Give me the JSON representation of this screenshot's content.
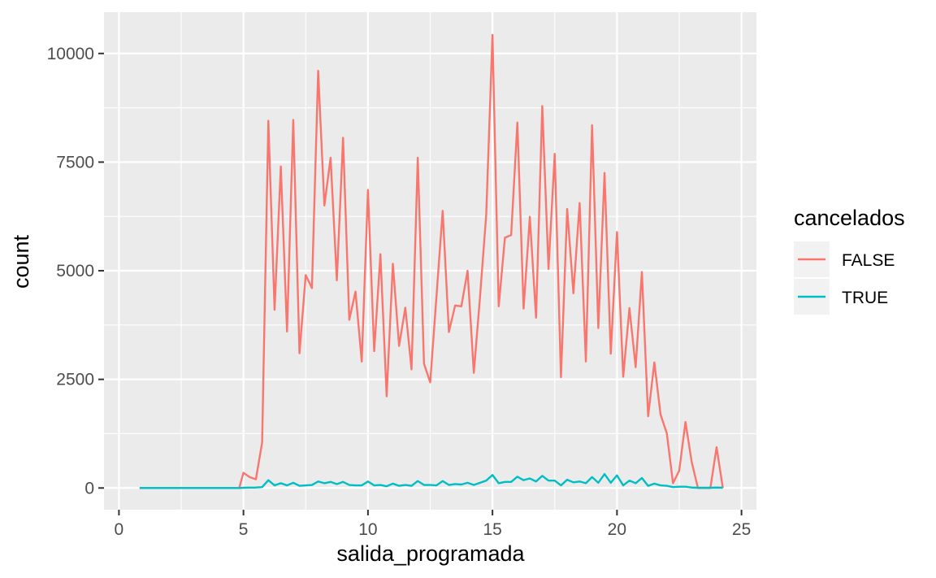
{
  "chart_data": {
    "type": "line",
    "title": "",
    "xlabel": "salida_programada",
    "ylabel": "count",
    "xlim": [
      -0.6,
      25.6
    ],
    "ylim": [
      -500,
      10950
    ],
    "x_ticks": [
      0,
      5,
      10,
      15,
      20,
      25
    ],
    "y_ticks": [
      0,
      2500,
      5000,
      7500,
      10000
    ],
    "grid": true,
    "legend": {
      "title": "cancelados",
      "position": "right"
    },
    "series": [
      {
        "name": "FALSE",
        "color": "#F8766D",
        "x": [
          0.83,
          1.0,
          1.17,
          1.33,
          1.5,
          1.67,
          1.83,
          2.0,
          2.17,
          2.33,
          2.5,
          2.67,
          2.83,
          3.0,
          3.17,
          3.33,
          3.5,
          3.67,
          3.83,
          4.0,
          4.17,
          4.33,
          4.5,
          4.67,
          4.83,
          5.0,
          5.25,
          5.5,
          5.75,
          6.0,
          6.25,
          6.5,
          6.75,
          7.0,
          7.25,
          7.5,
          7.75,
          8.0,
          8.25,
          8.5,
          8.75,
          9.0,
          9.25,
          9.5,
          9.75,
          10.0,
          10.25,
          10.5,
          10.75,
          11.0,
          11.25,
          11.5,
          11.75,
          12.0,
          12.25,
          12.5,
          12.75,
          13.0,
          13.25,
          13.5,
          13.75,
          14.0,
          14.25,
          14.5,
          14.75,
          15.0,
          15.25,
          15.5,
          15.75,
          16.0,
          16.25,
          16.5,
          16.75,
          17.0,
          17.25,
          17.5,
          17.75,
          18.0,
          18.25,
          18.5,
          18.75,
          19.0,
          19.25,
          19.5,
          19.75,
          20.0,
          20.25,
          20.5,
          20.75,
          21.0,
          21.25,
          21.5,
          21.75,
          22.0,
          22.25,
          22.5,
          22.75,
          23.0,
          23.25,
          23.5,
          23.75,
          24.0,
          24.25
        ],
        "y": [
          0,
          0,
          0,
          0,
          0,
          0,
          0,
          0,
          0,
          0,
          0,
          0,
          0,
          0,
          0,
          0,
          0,
          0,
          0,
          0,
          0,
          0,
          0,
          0,
          0,
          350,
          250,
          200,
          1050,
          8450,
          4100,
          7400,
          3600,
          8470,
          3100,
          4900,
          4600,
          9600,
          6500,
          7600,
          4780,
          8060,
          3870,
          4520,
          2910,
          6860,
          3150,
          5380,
          2110,
          5160,
          3270,
          4150,
          2730,
          7600,
          2860,
          2430,
          4400,
          6380,
          3590,
          4200,
          4180,
          5000,
          2650,
          4400,
          6300,
          10430,
          4180,
          5760,
          5820,
          8410,
          4130,
          6240,
          3920,
          8790,
          5040,
          7690,
          2550,
          6420,
          4480,
          6560,
          2910,
          8350,
          3680,
          7250,
          3090,
          5890,
          2560,
          4140,
          2780,
          4970,
          1650,
          2890,
          1690,
          1260,
          110,
          400,
          1520,
          600,
          0,
          0,
          0,
          940,
          0
        ]
      },
      {
        "name": "TRUE",
        "color": "#00BFC4",
        "x": [
          0.83,
          1.0,
          1.17,
          1.33,
          1.5,
          1.67,
          1.83,
          2.0,
          2.17,
          2.33,
          2.5,
          2.67,
          2.83,
          3.0,
          3.17,
          3.33,
          3.5,
          3.67,
          3.83,
          4.0,
          4.17,
          4.33,
          4.5,
          4.67,
          4.83,
          5.0,
          5.25,
          5.5,
          5.75,
          6.0,
          6.25,
          6.5,
          6.75,
          7.0,
          7.25,
          7.5,
          7.75,
          8.0,
          8.25,
          8.5,
          8.75,
          9.0,
          9.25,
          9.5,
          9.75,
          10.0,
          10.25,
          10.5,
          10.75,
          11.0,
          11.25,
          11.5,
          11.75,
          12.0,
          12.25,
          12.5,
          12.75,
          13.0,
          13.25,
          13.5,
          13.75,
          14.0,
          14.25,
          14.5,
          14.75,
          15.0,
          15.25,
          15.5,
          15.75,
          16.0,
          16.25,
          16.5,
          16.75,
          17.0,
          17.25,
          17.5,
          17.75,
          18.0,
          18.25,
          18.5,
          18.75,
          19.0,
          19.25,
          19.5,
          19.75,
          20.0,
          20.25,
          20.5,
          20.75,
          21.0,
          21.25,
          21.5,
          21.75,
          22.0,
          22.25,
          22.5,
          22.75,
          23.0,
          23.25,
          23.5,
          23.75,
          24.0,
          24.25
        ],
        "y": [
          0,
          0,
          0,
          0,
          0,
          0,
          0,
          0,
          0,
          0,
          0,
          0,
          0,
          0,
          0,
          0,
          0,
          0,
          0,
          0,
          0,
          0,
          0,
          0,
          0,
          5,
          8,
          10,
          20,
          180,
          60,
          110,
          60,
          120,
          50,
          60,
          70,
          150,
          110,
          140,
          90,
          140,
          70,
          60,
          60,
          150,
          60,
          70,
          40,
          100,
          50,
          70,
          50,
          160,
          70,
          70,
          60,
          160,
          70,
          90,
          80,
          120,
          70,
          120,
          170,
          300,
          110,
          140,
          140,
          260,
          180,
          220,
          150,
          280,
          170,
          170,
          60,
          190,
          130,
          150,
          110,
          250,
          120,
          320,
          120,
          290,
          60,
          170,
          110,
          230,
          50,
          100,
          60,
          50,
          20,
          30,
          30,
          10,
          5,
          5,
          5,
          10,
          5
        ]
      }
    ]
  }
}
